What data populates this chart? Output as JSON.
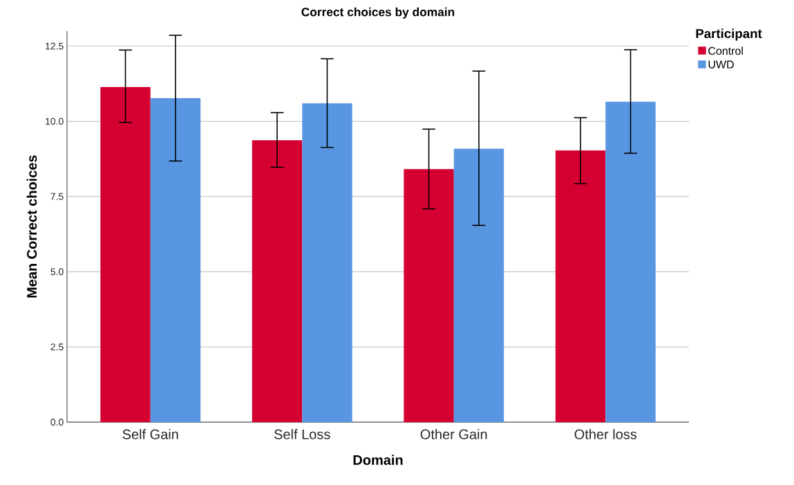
{
  "chart_data": {
    "type": "bar",
    "title": "Correct choices by domain",
    "xlabel": "Domain",
    "ylabel": "Mean Correct choices",
    "legend_title": "Participant",
    "categories": [
      "Self Gain",
      "Self Loss",
      "Other Gain",
      "Other loss"
    ],
    "series": [
      {
        "name": "Control",
        "color": "#d50032",
        "values": [
          11.14,
          9.37,
          8.41,
          9.03
        ],
        "errors": [
          [
            9.96,
            12.37
          ],
          [
            8.47,
            10.29
          ],
          [
            7.09,
            9.74
          ],
          [
            7.93,
            10.12
          ]
        ]
      },
      {
        "name": "UWD",
        "color": "#5896e2",
        "values": [
          10.77,
          10.6,
          9.09,
          10.65
        ],
        "errors": [
          [
            8.68,
            12.86
          ],
          [
            9.13,
            12.08
          ],
          [
            6.54,
            11.67
          ],
          [
            8.94,
            12.38
          ]
        ]
      }
    ],
    "ylim": [
      0,
      13
    ],
    "yticks": [
      {
        "value": 0,
        "label": "0.0"
      },
      {
        "value": 2.5,
        "label": "2.5"
      },
      {
        "value": 5,
        "label": "5.0"
      },
      {
        "value": 7.5,
        "label": "7.5"
      },
      {
        "value": 10,
        "label": "10.0"
      },
      {
        "value": 12.5,
        "label": "12.5"
      }
    ],
    "grid": "y",
    "legend": "top right"
  }
}
